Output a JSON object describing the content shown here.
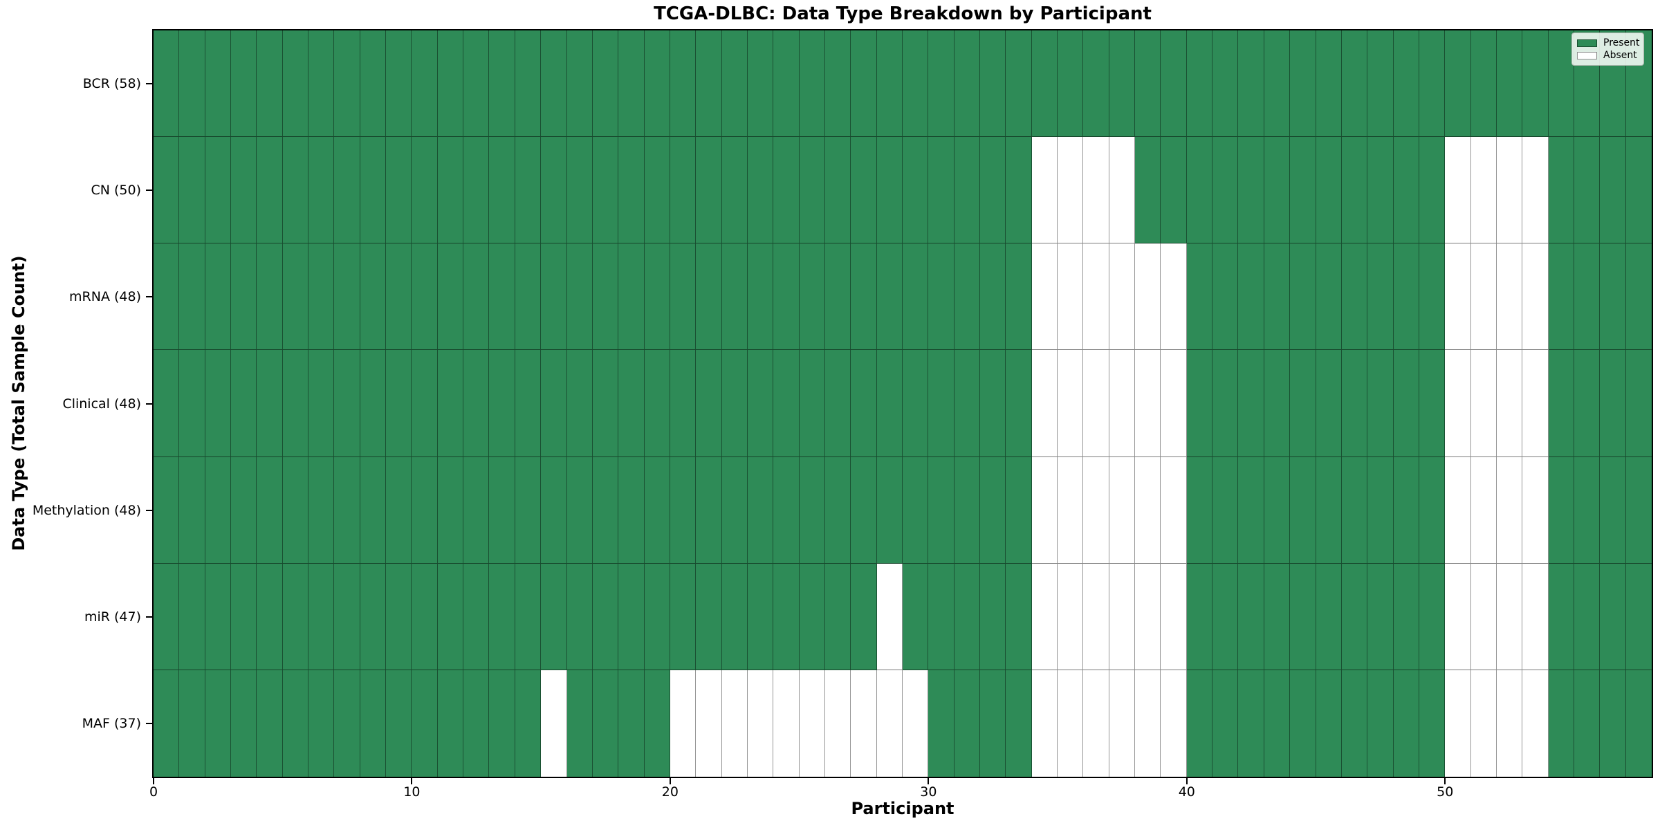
{
  "title": "TCGA-DLBC: Data Type Breakdown by Participant",
  "chart_data": {
    "type": "heatmap",
    "title": "TCGA-DLBC: Data Type Breakdown by Participant",
    "xlabel": "Participant",
    "ylabel": "Data Type (Total Sample Count)",
    "x_ticks": [
      0,
      10,
      20,
      30,
      40,
      50
    ],
    "x_range": [
      0,
      58
    ],
    "n_participants": 58,
    "grid": false,
    "legend_position": "upper right",
    "rows": [
      {
        "label": "BCR (58)",
        "name": "BCR",
        "present_count": 58,
        "absent": []
      },
      {
        "label": "CN (50)",
        "name": "CN",
        "present_count": 50,
        "absent": [
          34,
          35,
          36,
          37,
          50,
          51,
          52,
          53
        ]
      },
      {
        "label": "mRNA (48)",
        "name": "mRNA",
        "present_count": 48,
        "absent": [
          34,
          35,
          36,
          37,
          38,
          39,
          50,
          51,
          52,
          53
        ]
      },
      {
        "label": "Clinical (48)",
        "name": "Clinical",
        "present_count": 48,
        "absent": [
          34,
          35,
          36,
          37,
          38,
          39,
          50,
          51,
          52,
          53
        ]
      },
      {
        "label": "Methylation (48)",
        "name": "Methylation",
        "present_count": 48,
        "absent": [
          34,
          35,
          36,
          37,
          38,
          39,
          50,
          51,
          52,
          53
        ]
      },
      {
        "label": "miR (47)",
        "name": "miR",
        "present_count": 47,
        "absent": [
          28,
          34,
          35,
          36,
          37,
          38,
          39,
          50,
          51,
          52,
          53
        ]
      },
      {
        "label": "MAF (37)",
        "name": "MAF",
        "present_count": 37,
        "absent": [
          15,
          20,
          21,
          22,
          23,
          24,
          25,
          26,
          27,
          28,
          29,
          34,
          35,
          36,
          37,
          38,
          39,
          50,
          51,
          52,
          53
        ]
      }
    ],
    "legend": {
      "entries": [
        {
          "label": "Present",
          "color": "#2e8b57"
        },
        {
          "label": "Absent",
          "color": "#ffffff"
        }
      ]
    },
    "colors": {
      "present": "#2e8b57",
      "absent": "#ffffff",
      "cell_edge": "rgba(0,0,0,0.42)",
      "spine": "#000000"
    }
  }
}
